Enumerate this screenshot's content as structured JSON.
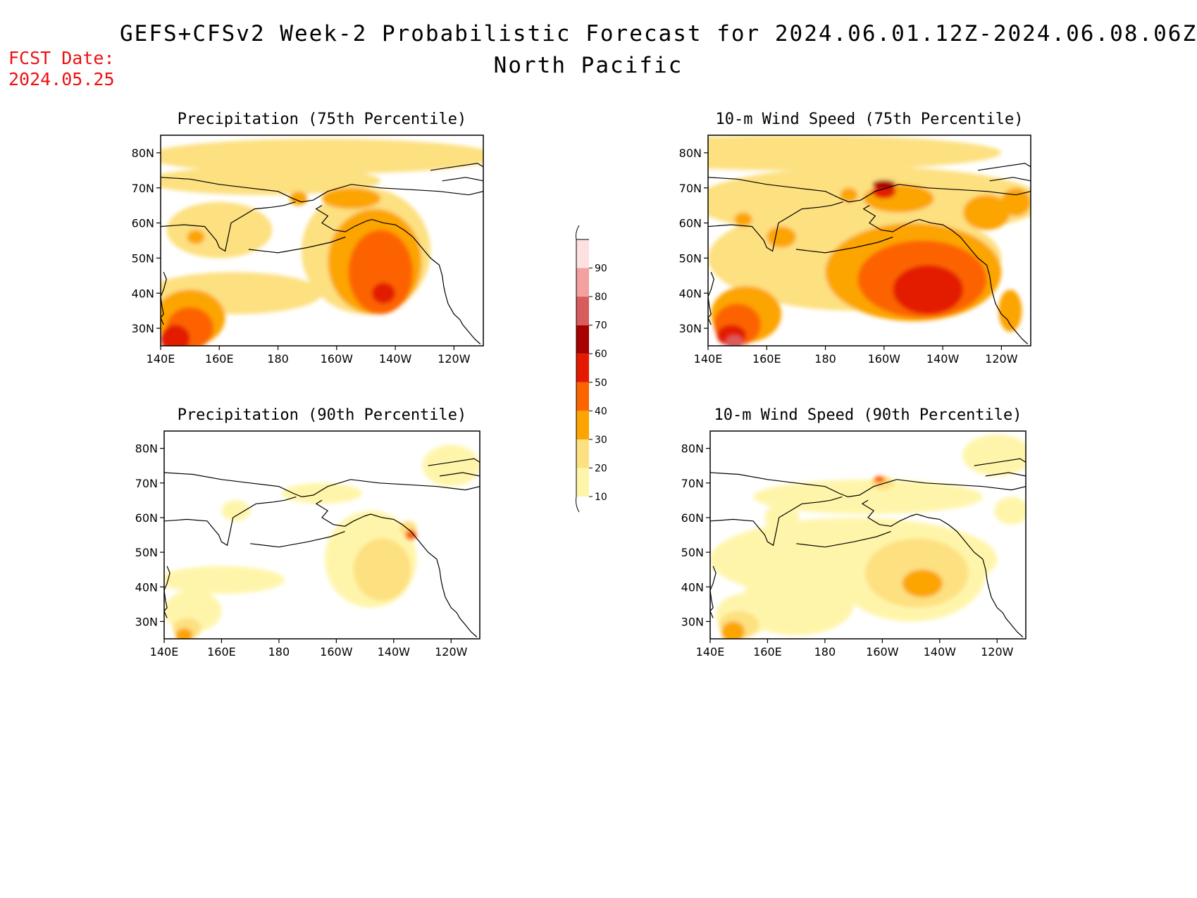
{
  "header": {
    "title": "GEFS+CFSv2 Week-2 Probabilistic Forecast for 2024.06.01.12Z-2024.06.08.06Z",
    "region": "North Pacific",
    "fcst_label": "FCST Date:",
    "fcst_date": "2024.05.25"
  },
  "axes": {
    "lon_ticks": [
      "140E",
      "160E",
      "180",
      "160W",
      "140W",
      "120W"
    ],
    "lat_ticks": [
      "80N",
      "70N",
      "60N",
      "50N",
      "40N",
      "30N"
    ]
  },
  "panels": [
    {
      "title": "Precipitation (75th Percentile)",
      "variable": "precip",
      "percentile": 75
    },
    {
      "title": "10-m Wind Speed (75th Percentile)",
      "variable": "wind",
      "percentile": 75
    },
    {
      "title": "Precipitation (90th Percentile)",
      "variable": "precip",
      "percentile": 90
    },
    {
      "title": "10-m Wind Speed (90th Percentile)",
      "variable": "wind",
      "percentile": 90
    }
  ],
  "colorbar": {
    "levels": [
      "10",
      "20",
      "30",
      "40",
      "50",
      "60",
      "70",
      "80",
      "90"
    ],
    "colors": [
      "#fff5aa",
      "#fde080",
      "#fca400",
      "#fc6400",
      "#e31a00",
      "#a80000",
      "#d95c5c",
      "#f2a0a0",
      "#fde0e0"
    ]
  }
}
